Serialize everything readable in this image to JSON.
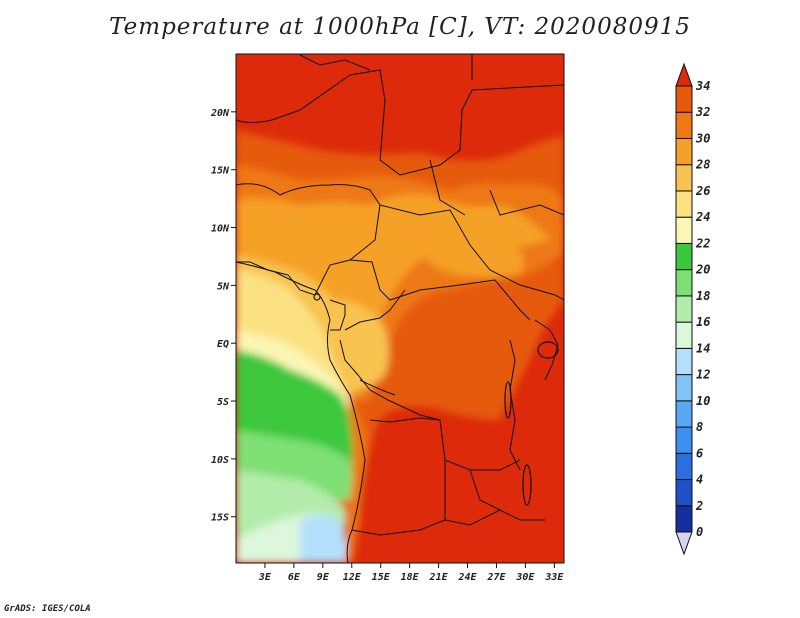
{
  "title": "Temperature at 1000hPa [C], VT: 2020080915",
  "credit": "GrADS: IGES/COLA",
  "map": {
    "lon_range": [
      0,
      34
    ],
    "lat_range": [
      -19,
      25
    ],
    "x_ticks": [
      "3E",
      "6E",
      "9E",
      "12E",
      "15E",
      "18E",
      "21E",
      "24E",
      "27E",
      "30E",
      "33E"
    ],
    "y_ticks": [
      "20N",
      "15N",
      "10N",
      "5N",
      "EQ",
      "5S",
      "10S",
      "15S"
    ]
  },
  "colorbar": {
    "levels": [
      "0",
      "2",
      "4",
      "6",
      "8",
      "10",
      "12",
      "14",
      "16",
      "18",
      "20",
      "22",
      "24",
      "26",
      "28",
      "30",
      "32",
      "34"
    ],
    "colors": [
      "#0a0a78",
      "#1430a0",
      "#1e50c8",
      "#2a6ee0",
      "#3c8ef0",
      "#5aa8f5",
      "#82c4f8",
      "#b4e0fb",
      "#dcf7dc",
      "#b2ecaa",
      "#7ee074",
      "#3cc83c",
      "#fbf6b4",
      "#fbe182",
      "#f8c350",
      "#f5a028",
      "#ee7814",
      "#e65a0a",
      "#dc2a0a"
    ]
  }
}
